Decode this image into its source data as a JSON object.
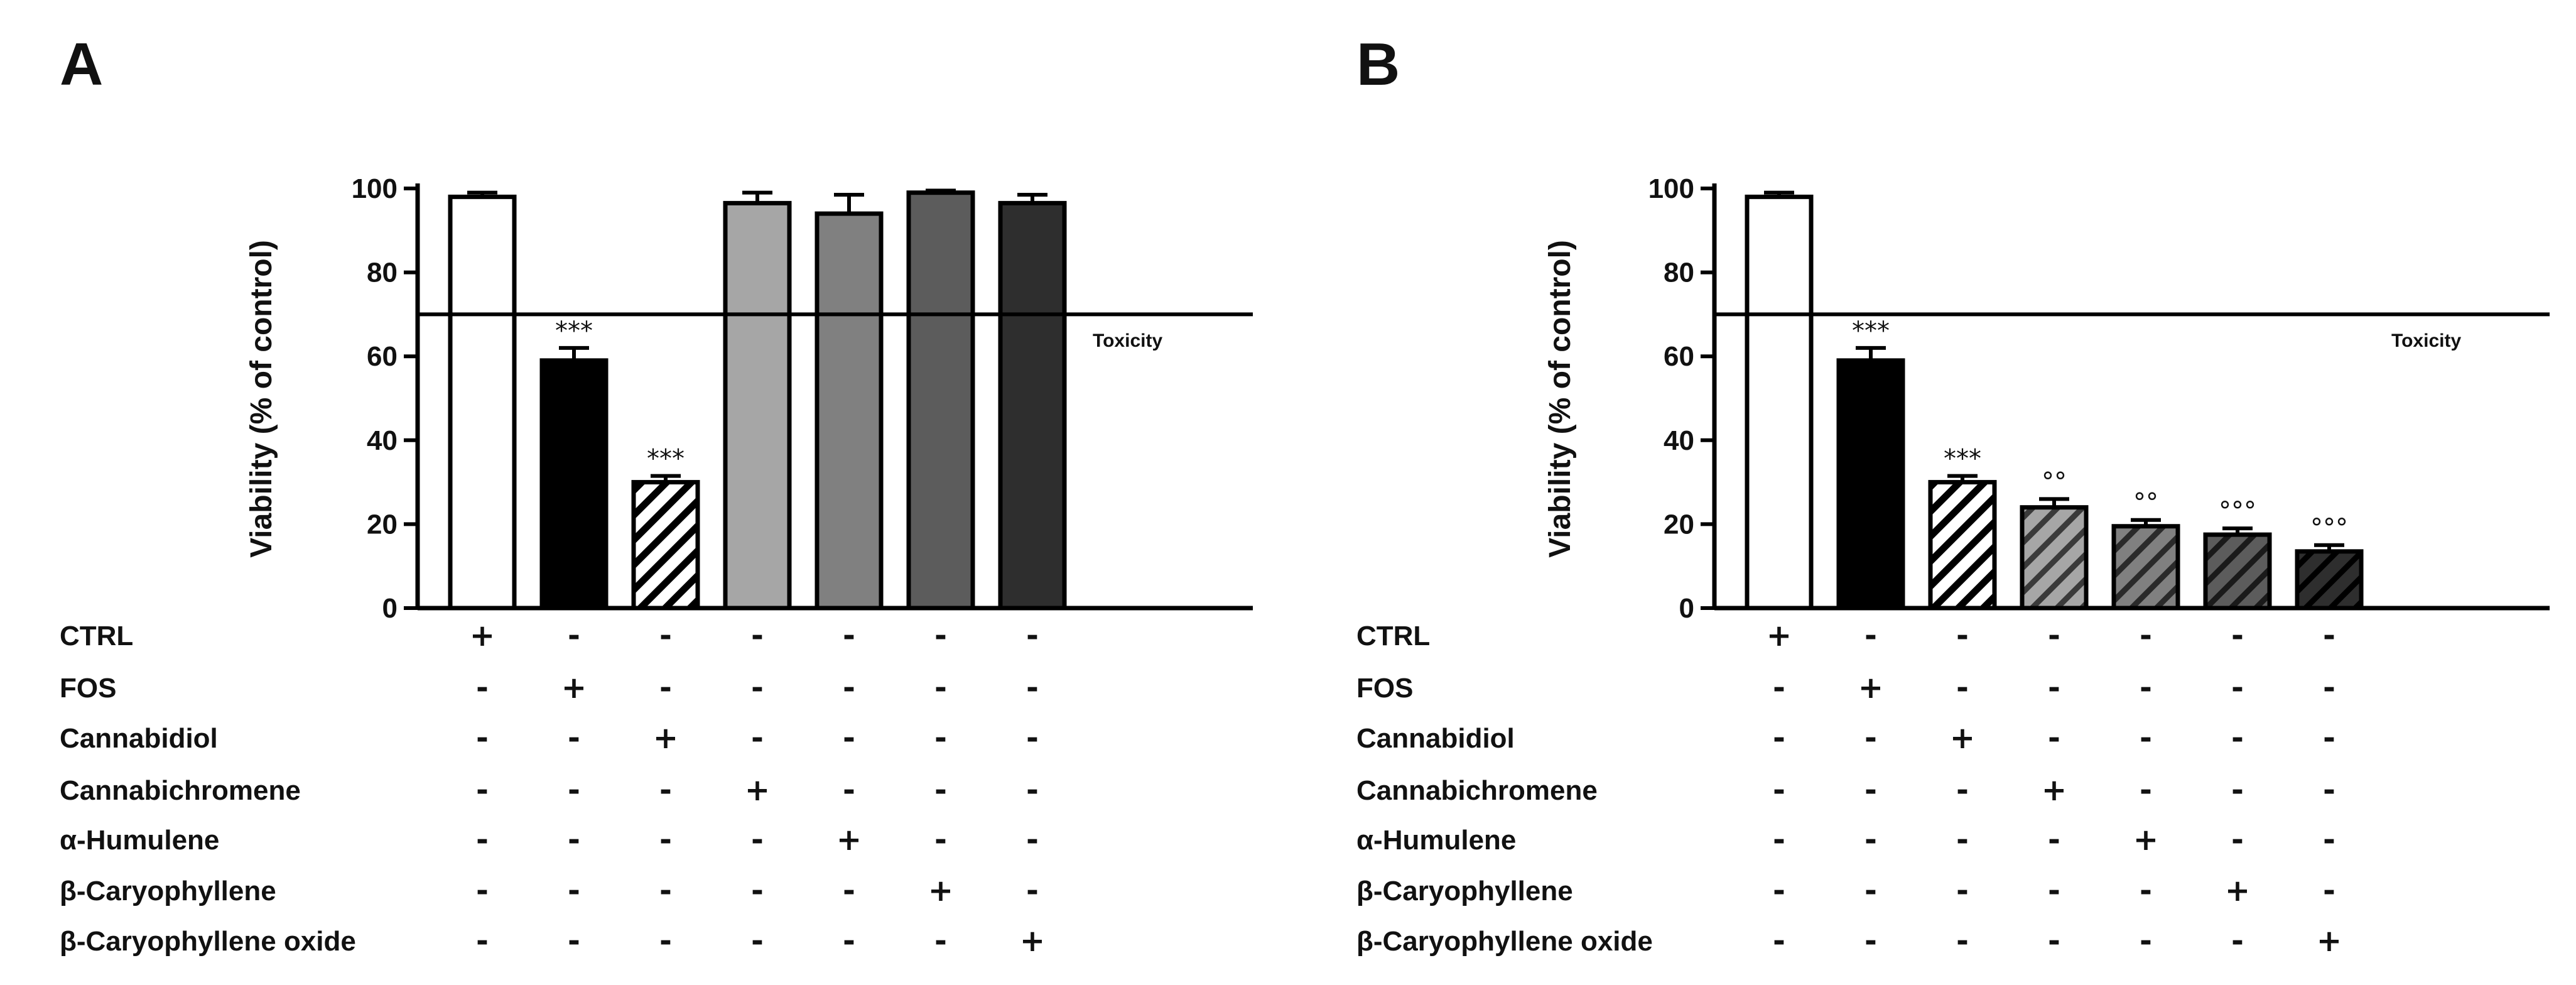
{
  "panels": [
    {
      "letter": "A",
      "chart_data": {
        "type": "bar",
        "ylabel": "Viability (% of control)",
        "ylim": [
          0,
          100
        ],
        "yticks": [
          0,
          20,
          40,
          60,
          80,
          100
        ],
        "threshold": {
          "value": 70,
          "label": "Toxicity"
        },
        "bars": [
          {
            "value": 98,
            "error": 1,
            "fill": "white",
            "annotation": ""
          },
          {
            "value": 59,
            "error": 3,
            "fill": "black",
            "annotation": "***"
          },
          {
            "value": 30,
            "error": 1.5,
            "fill": "hatch-white",
            "annotation": "***"
          },
          {
            "value": 96.5,
            "error": 2.5,
            "fill": "#a6a6a6",
            "annotation": ""
          },
          {
            "value": 94,
            "error": 4.5,
            "fill": "#808080",
            "annotation": ""
          },
          {
            "value": 99,
            "error": 0.5,
            "fill": "#5c5c5c",
            "annotation": ""
          },
          {
            "value": 96.5,
            "error": 2,
            "fill": "#2e2e2e",
            "annotation": ""
          }
        ],
        "treatments": [
          "CTRL",
          "FOS",
          "Cannabidiol",
          "Cannabichromene",
          "α-Humulene",
          "β-Caryophyllene",
          "β-Caryophyllene oxide"
        ],
        "matrix": [
          [
            "+",
            "-",
            "-",
            "-",
            "-",
            "-",
            "-"
          ],
          [
            "-",
            "+",
            "-",
            "-",
            "-",
            "-",
            "-"
          ],
          [
            "-",
            "-",
            "+",
            "-",
            "-",
            "-",
            "-"
          ],
          [
            "-",
            "-",
            "-",
            "+",
            "-",
            "-",
            "-"
          ],
          [
            "-",
            "-",
            "-",
            "-",
            "+",
            "-",
            "-"
          ],
          [
            "-",
            "-",
            "-",
            "-",
            "-",
            "+",
            "-"
          ],
          [
            "-",
            "-",
            "-",
            "-",
            "-",
            "-",
            "+"
          ]
        ]
      }
    },
    {
      "letter": "B",
      "chart_data": {
        "type": "bar",
        "ylabel": "Viability (% of control)",
        "ylim": [
          0,
          100
        ],
        "yticks": [
          0,
          20,
          40,
          60,
          80,
          100
        ],
        "threshold": {
          "value": 70,
          "label": "Toxicity"
        },
        "bars": [
          {
            "value": 98,
            "error": 1,
            "fill": "white",
            "annotation": ""
          },
          {
            "value": 59,
            "error": 3,
            "fill": "black",
            "annotation": "***"
          },
          {
            "value": 30,
            "error": 1.5,
            "fill": "hatch-white",
            "annotation": "***"
          },
          {
            "value": 24,
            "error": 2,
            "fill": "hatch-#a6a6a6",
            "annotation": "°°"
          },
          {
            "value": 19.5,
            "error": 1.5,
            "fill": "hatch-#808080",
            "annotation": "°°"
          },
          {
            "value": 17.5,
            "error": 1.5,
            "fill": "hatch-#5c5c5c",
            "annotation": "°°°"
          },
          {
            "value": 13.5,
            "error": 1.5,
            "fill": "hatch-#2e2e2e",
            "annotation": "°°°"
          }
        ],
        "treatments": [
          "CTRL",
          "FOS",
          "Cannabidiol",
          "Cannabichromene",
          "α-Humulene",
          "β-Caryophyllene",
          "β-Caryophyllene oxide"
        ],
        "matrix": [
          [
            "+",
            "-",
            "-",
            "-",
            "-",
            "-",
            "-"
          ],
          [
            "-",
            "+",
            "-",
            "-",
            "-",
            "-",
            "-"
          ],
          [
            "-",
            "-",
            "+",
            "-",
            "-",
            "-",
            "-"
          ],
          [
            "-",
            "-",
            "-",
            "+",
            "-",
            "-",
            "-"
          ],
          [
            "-",
            "-",
            "-",
            "-",
            "+",
            "-",
            "-"
          ],
          [
            "-",
            "-",
            "-",
            "-",
            "-",
            "+",
            "-"
          ],
          [
            "-",
            "-",
            "-",
            "-",
            "-",
            "-",
            "+"
          ]
        ]
      }
    }
  ]
}
